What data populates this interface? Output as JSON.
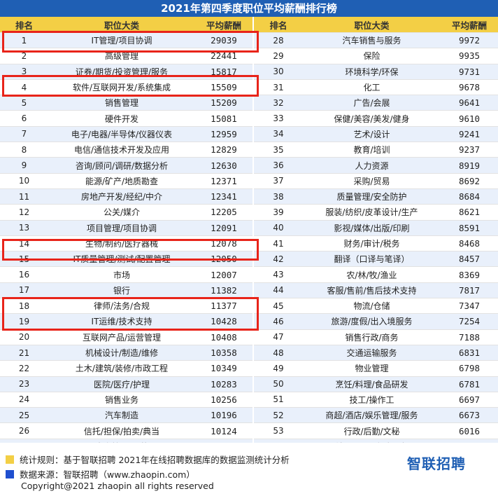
{
  "title": "2021年第四季度职位平均薪酬排行榜",
  "headers": {
    "rank": "排名",
    "category": "职位大类",
    "salary": "平均薪酬"
  },
  "left_rows": [
    {
      "rank": "1",
      "category": "IT管理/项目协调",
      "salary": "29039"
    },
    {
      "rank": "2",
      "category": "高级管理",
      "salary": "22441"
    },
    {
      "rank": "3",
      "category": "证券/期货/投资管理/服务",
      "salary": "15817"
    },
    {
      "rank": "4",
      "category": "软件/互联网开发/系统集成",
      "salary": "15509"
    },
    {
      "rank": "5",
      "category": "销售管理",
      "salary": "15209"
    },
    {
      "rank": "6",
      "category": "硬件开发",
      "salary": "15081"
    },
    {
      "rank": "7",
      "category": "电子/电器/半导体/仪器仪表",
      "salary": "12959"
    },
    {
      "rank": "8",
      "category": "电信/通信技术开发及应用",
      "salary": "12829"
    },
    {
      "rank": "9",
      "category": "咨询/顾问/调研/数据分析",
      "salary": "12630"
    },
    {
      "rank": "10",
      "category": "能源/矿产/地质勘查",
      "salary": "12371"
    },
    {
      "rank": "11",
      "category": "房地产开发/经纪/中介",
      "salary": "12341"
    },
    {
      "rank": "12",
      "category": "公关/媒介",
      "salary": "12205"
    },
    {
      "rank": "13",
      "category": "项目管理/项目协调",
      "salary": "12091"
    },
    {
      "rank": "14",
      "category": "生物/制药/医疗器械",
      "salary": "12078"
    },
    {
      "rank": "15",
      "category": "IT质量管理/测试/配置管理",
      "salary": "12050"
    },
    {
      "rank": "16",
      "category": "市场",
      "salary": "12007"
    },
    {
      "rank": "17",
      "category": "银行",
      "salary": "11382"
    },
    {
      "rank": "18",
      "category": "律师/法务/合规",
      "salary": "11377"
    },
    {
      "rank": "19",
      "category": "IT运维/技术支持",
      "salary": "10428"
    },
    {
      "rank": "20",
      "category": "互联网产品/运营管理",
      "salary": "10408"
    },
    {
      "rank": "21",
      "category": "机械设计/制造/维修",
      "salary": "10358"
    },
    {
      "rank": "22",
      "category": "土木/建筑/装修/市政工程",
      "salary": "10349"
    },
    {
      "rank": "23",
      "category": "医院/医疗/护理",
      "salary": "10283"
    },
    {
      "rank": "24",
      "category": "销售业务",
      "salary": "10256"
    },
    {
      "rank": "25",
      "category": "汽车制造",
      "salary": "10196"
    },
    {
      "rank": "26",
      "category": "信托/担保/拍卖/典当",
      "salary": "10124"
    },
    {
      "rank": "27",
      "category": "生产管理/运营",
      "salary": "9977"
    }
  ],
  "right_rows": [
    {
      "rank": "28",
      "category": "汽车销售与服务",
      "salary": "9972"
    },
    {
      "rank": "29",
      "category": "保险",
      "salary": "9935"
    },
    {
      "rank": "30",
      "category": "环境科学/环保",
      "salary": "9731"
    },
    {
      "rank": "31",
      "category": "化工",
      "salary": "9678"
    },
    {
      "rank": "32",
      "category": "广告/会展",
      "salary": "9641"
    },
    {
      "rank": "33",
      "category": "保健/美容/美发/健身",
      "salary": "9610"
    },
    {
      "rank": "34",
      "category": "艺术/设计",
      "salary": "9241"
    },
    {
      "rank": "35",
      "category": "教育/培训",
      "salary": "9237"
    },
    {
      "rank": "36",
      "category": "人力资源",
      "salary": "8919"
    },
    {
      "rank": "37",
      "category": "采购/贸易",
      "salary": "8692"
    },
    {
      "rank": "38",
      "category": "质量管理/安全防护",
      "salary": "8684"
    },
    {
      "rank": "39",
      "category": "服装/纺织/皮革设计/生产",
      "salary": "8621"
    },
    {
      "rank": "40",
      "category": "影视/媒体/出版/印刷",
      "salary": "8591"
    },
    {
      "rank": "41",
      "category": "财务/审计/税务",
      "salary": "8468"
    },
    {
      "rank": "42",
      "category": "翻译（口译与笔译）",
      "salary": "8457"
    },
    {
      "rank": "43",
      "category": "农/林/牧/渔业",
      "salary": "8369"
    },
    {
      "rank": "44",
      "category": "客服/售前/售后技术支持",
      "salary": "7817"
    },
    {
      "rank": "45",
      "category": "物流/仓储",
      "salary": "7347"
    },
    {
      "rank": "46",
      "category": "旅游/度假/出入境服务",
      "salary": "7254"
    },
    {
      "rank": "47",
      "category": "销售行政/商务",
      "salary": "7188"
    },
    {
      "rank": "48",
      "category": "交通运输服务",
      "salary": "6831"
    },
    {
      "rank": "49",
      "category": "物业管理",
      "salary": "6798"
    },
    {
      "rank": "50",
      "category": "烹饪/料理/食品研发",
      "salary": "6781"
    },
    {
      "rank": "51",
      "category": "技工/操作工",
      "salary": "6697"
    },
    {
      "rank": "52",
      "category": "商超/酒店/娱乐管理/服务",
      "salary": "6673"
    },
    {
      "rank": "53",
      "category": "行政/后勤/文秘",
      "salary": "6016"
    },
    {
      "rank": "54",
      "category": "社区/居民/家政服务",
      "salary": "5091"
    }
  ],
  "highlighted_ranks": [
    "1",
    "4",
    "15",
    "19",
    "20"
  ],
  "footer": {
    "rule_text": "统计规则：基于智联招聘 2021年在线招聘数据库的数据监测统计分析",
    "source_text": "数据来源：智联招聘（www.zhaopin.com）",
    "brand": "智联招聘",
    "copyright": "Copyright@2021 zhaopin all rights reserved"
  },
  "colors": {
    "title_bg": "#1f5fb4",
    "header_bg": "#f3cf45",
    "row_alt_bg": "#e9f0fb",
    "highlight": "#e8241a",
    "rule_square": "#f3cf45",
    "source_square": "#1f4fcf",
    "brand_color": "#1f5fb4"
  }
}
